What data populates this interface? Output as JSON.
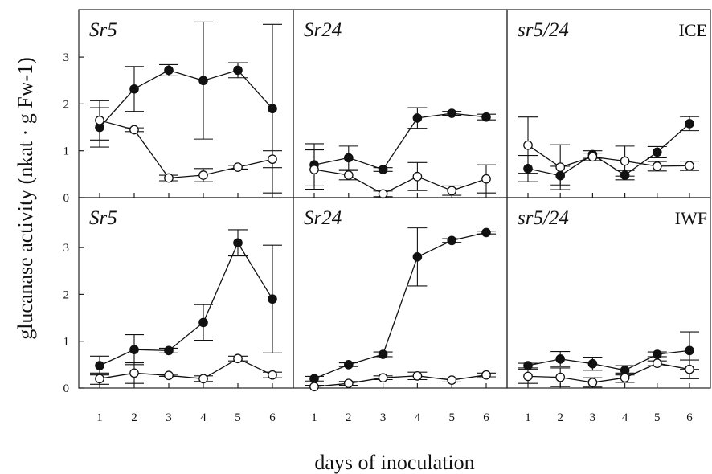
{
  "chart_data": {
    "type": "line",
    "xlabel": "days of inoculation",
    "ylabel": "glucanase activity (nkat · g Fw-1)",
    "x": [
      1,
      2,
      3,
      4,
      5,
      6
    ],
    "x_tick_labels": [
      "1",
      "2",
      "3",
      "4",
      "5",
      "6"
    ],
    "y_tick_labels": [
      "0",
      "1",
      "2",
      "3"
    ],
    "ylim": [
      0,
      3.9
    ],
    "grid": false,
    "row_tags": [
      "ICE",
      "IWF"
    ],
    "marker_styles": [
      "filled-circle",
      "open-circle"
    ],
    "panels": [
      {
        "title": "Sr5",
        "row": "ICE",
        "series": [
          {
            "marker": "filled-circle",
            "values": [
              1.5,
              2.32,
              2.72,
              2.5,
              2.72,
              1.9
            ],
            "err": [
              0.42,
              0.48,
              0.12,
              1.25,
              0.16,
              1.8
            ]
          },
          {
            "marker": "open-circle",
            "values": [
              1.65,
              1.45,
              0.42,
              0.48,
              0.65,
              0.82
            ],
            "err": [
              0.42,
              0.04,
              0.06,
              0.14,
              0.04,
              0.18
            ]
          }
        ]
      },
      {
        "title": "Sr24",
        "row": "ICE",
        "series": [
          {
            "marker": "filled-circle",
            "values": [
              0.7,
              0.85,
              0.6,
              1.7,
              1.8,
              1.72
            ],
            "err": [
              0.45,
              0.25,
              0.04,
              0.22,
              0.04,
              0.06
            ]
          },
          {
            "marker": "open-circle",
            "values": [
              0.6,
              0.48,
              0.08,
              0.45,
              0.15,
              0.4
            ],
            "err": [
              0.42,
              0.1,
              0.06,
              0.3,
              0.1,
              0.3
            ]
          }
        ]
      },
      {
        "title": "sr5/24",
        "row": "ICE",
        "series": [
          {
            "marker": "filled-circle",
            "values": [
              0.62,
              0.47,
              0.92,
              0.48,
              0.97,
              1.58
            ],
            "err": [
              0.28,
              0.2,
              0.08,
              0.1,
              0.12,
              0.15
            ]
          },
          {
            "marker": "open-circle",
            "values": [
              1.12,
              0.65,
              0.87,
              0.78,
              0.67,
              0.68
            ],
            "err": [
              0.6,
              0.48,
              0.08,
              0.32,
              0.1,
              0.1
            ]
          }
        ]
      },
      {
        "title": "Sr5",
        "row": "IWF",
        "series": [
          {
            "marker": "filled-circle",
            "values": [
              0.48,
              0.82,
              0.8,
              1.4,
              3.1,
              1.9
            ],
            "err": [
              0.2,
              0.32,
              0.05,
              0.38,
              0.28,
              1.15
            ]
          },
          {
            "marker": "open-circle",
            "values": [
              0.2,
              0.32,
              0.27,
              0.2,
              0.63,
              0.28
            ],
            "err": [
              0.12,
              0.22,
              0.02,
              0.06,
              0.05,
              0.06
            ]
          }
        ]
      },
      {
        "title": "Sr24",
        "row": "IWF",
        "series": [
          {
            "marker": "filled-circle",
            "values": [
              0.2,
              0.5,
              0.72,
              2.8,
              3.15,
              3.32
            ],
            "err": [
              0.05,
              0.04,
              0.05,
              0.62,
              0.04,
              0.03
            ]
          },
          {
            "marker": "open-circle",
            "values": [
              0.03,
              0.1,
              0.22,
              0.26,
              0.17,
              0.28
            ],
            "err": [
              0.03,
              0.04,
              0.04,
              0.08,
              0.04,
              0.04
            ]
          }
        ]
      },
      {
        "title": "sr5/24",
        "row": "IWF",
        "series": [
          {
            "marker": "filled-circle",
            "values": [
              0.48,
              0.62,
              0.52,
              0.38,
              0.72,
              0.8
            ],
            "err": [
              0.05,
              0.16,
              0.14,
              0.1,
              0.05,
              0.4
            ]
          },
          {
            "marker": "open-circle",
            "values": [
              0.25,
              0.23,
              0.12,
              0.22,
              0.53,
              0.4
            ],
            "err": [
              0.15,
              0.2,
              0.1,
              0.1,
              0.05,
              0.2
            ]
          }
        ]
      }
    ]
  }
}
